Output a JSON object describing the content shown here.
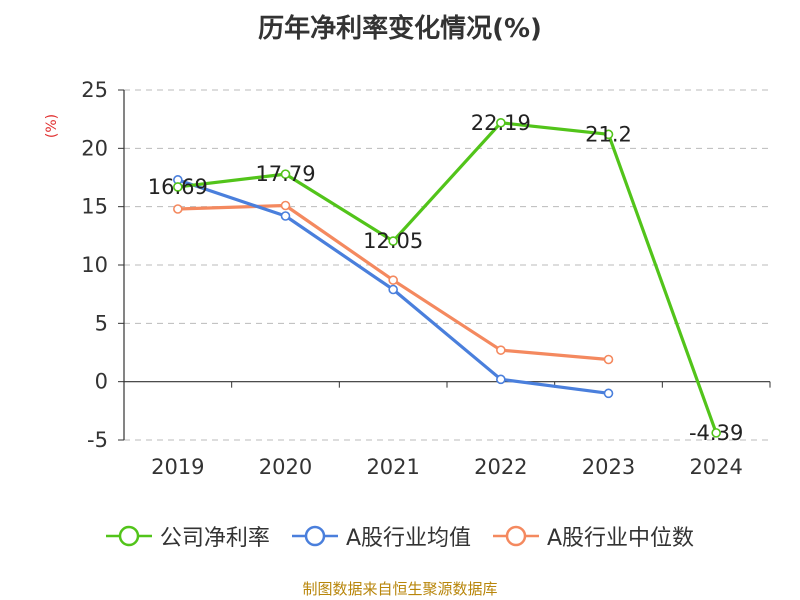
{
  "chart_data": {
    "type": "line",
    "title": "历年净利率变化情况(%)",
    "ylabel": "(%)",
    "xlabel": "",
    "categories": [
      "2019",
      "2020",
      "2021",
      "2022",
      "2023",
      "2024"
    ],
    "ylim": [
      -5,
      25
    ],
    "yticks": [
      -5,
      0,
      5,
      10,
      15,
      20,
      25
    ],
    "grid": true,
    "legend_position": "bottom",
    "series": [
      {
        "name": "公司净利率",
        "color": "#52c41a",
        "values": [
          16.69,
          17.79,
          12.05,
          22.19,
          21.2,
          -4.39
        ],
        "labels": [
          "16.69",
          "17.79",
          "12.05",
          "22.19",
          "21.2",
          "-4.39"
        ],
        "show_labels": true
      },
      {
        "name": "A股行业均值",
        "color": "#4a7fdc",
        "values": [
          17.3,
          14.2,
          7.9,
          0.2,
          -1.0,
          null
        ],
        "show_labels": false
      },
      {
        "name": "A股行业中位数",
        "color": "#f4895f",
        "values": [
          14.8,
          15.1,
          8.7,
          2.7,
          1.9,
          null
        ],
        "show_labels": false
      }
    ]
  },
  "source_note": "制图数据来自恒生聚源数据库",
  "ylabel_color": "#e03030"
}
